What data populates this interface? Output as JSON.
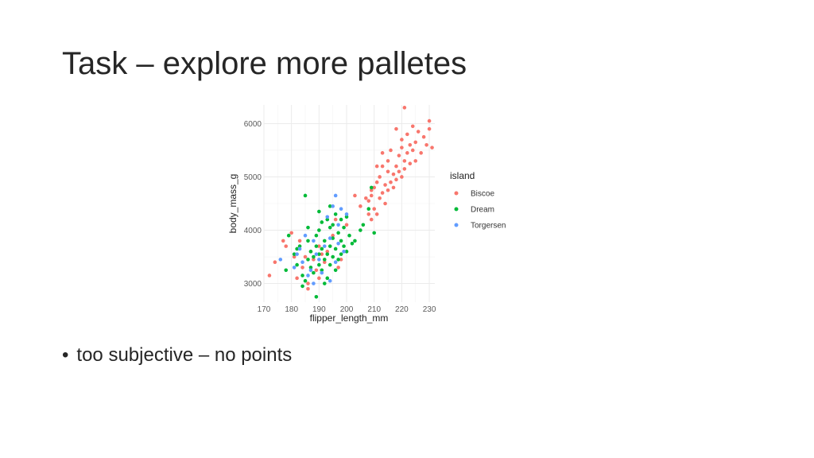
{
  "slide": {
    "title": "Task – explore more palletes",
    "bullet_glyph": "•",
    "bullet": "too subjective – no points"
  },
  "chart_data": {
    "type": "scatter",
    "title": "",
    "xlabel": "flipper_length_mm",
    "ylabel": "body_mass_g",
    "xlim": [
      170,
      232
    ],
    "ylim": [
      2650,
      6350
    ],
    "xticks": [
      170,
      180,
      190,
      200,
      210,
      220,
      230
    ],
    "yticks": [
      3000,
      4000,
      5000,
      6000
    ],
    "grid": true,
    "legend": {
      "title": "island",
      "placement": "right"
    },
    "series": [
      {
        "name": "Biscoe",
        "color": "#F8766D",
        "points": [
          [
            172,
            3150
          ],
          [
            174,
            3400
          ],
          [
            178,
            3700
          ],
          [
            180,
            3950
          ],
          [
            181,
            3500
          ],
          [
            182,
            3100
          ],
          [
            183,
            3800
          ],
          [
            184,
            3300
          ],
          [
            185,
            3500
          ],
          [
            186,
            3000
          ],
          [
            187,
            3600
          ],
          [
            188,
            3450
          ],
          [
            189,
            3250
          ],
          [
            190,
            3700
          ],
          [
            191,
            3550
          ],
          [
            192,
            3400
          ],
          [
            193,
            3600
          ],
          [
            195,
            3900
          ],
          [
            196,
            4200
          ],
          [
            197,
            3300
          ],
          [
            198,
            3450
          ],
          [
            200,
            4100
          ],
          [
            203,
            4650
          ],
          [
            205,
            4450
          ],
          [
            207,
            4600
          ],
          [
            208,
            4300
          ],
          [
            208,
            4550
          ],
          [
            209,
            4200
          ],
          [
            209,
            4750
          ],
          [
            210,
            4800
          ],
          [
            210,
            4400
          ],
          [
            211,
            4300
          ],
          [
            211,
            4900
          ],
          [
            212,
            4600
          ],
          [
            212,
            5000
          ],
          [
            213,
            4700
          ],
          [
            213,
            5200
          ],
          [
            214,
            4500
          ],
          [
            214,
            4850
          ],
          [
            215,
            5100
          ],
          [
            215,
            4750
          ],
          [
            215,
            5300
          ],
          [
            216,
            4900
          ],
          [
            216,
            5500
          ],
          [
            217,
            5050
          ],
          [
            217,
            4800
          ],
          [
            218,
            5200
          ],
          [
            218,
            4950
          ],
          [
            219,
            5400
          ],
          [
            219,
            5100
          ],
          [
            220,
            5000
          ],
          [
            220,
            5550
          ],
          [
            220,
            5700
          ],
          [
            221,
            5300
          ],
          [
            221,
            5150
          ],
          [
            222,
            5450
          ],
          [
            222,
            5800
          ],
          [
            223,
            5600
          ],
          [
            223,
            5250
          ],
          [
            224,
            5500
          ],
          [
            224,
            5950
          ],
          [
            225,
            5650
          ],
          [
            225,
            5300
          ],
          [
            226,
            5850
          ],
          [
            227,
            5450
          ],
          [
            228,
            5750
          ],
          [
            229,
            5600
          ],
          [
            230,
            5900
          ],
          [
            230,
            6050
          ],
          [
            231,
            5550
          ],
          [
            221,
            6300
          ],
          [
            218,
            5900
          ],
          [
            213,
            5450
          ],
          [
            211,
            5200
          ],
          [
            209,
            4650
          ],
          [
            186,
            2900
          ],
          [
            190,
            3100
          ],
          [
            177,
            3800
          ]
        ]
      },
      {
        "name": "Dream",
        "color": "#00BA38",
        "points": [
          [
            178,
            3250
          ],
          [
            179,
            3900
          ],
          [
            181,
            3550
          ],
          [
            182,
            3350
          ],
          [
            183,
            3700
          ],
          [
            184,
            3150
          ],
          [
            185,
            3050
          ],
          [
            185,
            4650
          ],
          [
            186,
            3450
          ],
          [
            186,
            3800
          ],
          [
            187,
            3300
          ],
          [
            187,
            3600
          ],
          [
            188,
            3200
          ],
          [
            188,
            3500
          ],
          [
            189,
            3700
          ],
          [
            189,
            3900
          ],
          [
            190,
            3350
          ],
          [
            190,
            3550
          ],
          [
            190,
            4000
          ],
          [
            191,
            3250
          ],
          [
            191,
            3650
          ],
          [
            191,
            4150
          ],
          [
            192,
            3450
          ],
          [
            192,
            3800
          ],
          [
            193,
            3100
          ],
          [
            193,
            3550
          ],
          [
            193,
            4200
          ],
          [
            194,
            3350
          ],
          [
            194,
            3700
          ],
          [
            194,
            4050
          ],
          [
            195,
            3500
          ],
          [
            195,
            3850
          ],
          [
            196,
            3250
          ],
          [
            196,
            3650
          ],
          [
            196,
            4300
          ],
          [
            197,
            3450
          ],
          [
            197,
            3950
          ],
          [
            198,
            3550
          ],
          [
            198,
            3800
          ],
          [
            199,
            3700
          ],
          [
            199,
            4050
          ],
          [
            200,
            3600
          ],
          [
            201,
            3900
          ],
          [
            202,
            3750
          ],
          [
            205,
            4000
          ],
          [
            206,
            4100
          ],
          [
            208,
            4400
          ],
          [
            209,
            4800
          ],
          [
            210,
            3950
          ],
          [
            184,
            2950
          ],
          [
            189,
            2750
          ],
          [
            192,
            3000
          ],
          [
            195,
            4100
          ],
          [
            198,
            4200
          ],
          [
            200,
            4250
          ],
          [
            203,
            3800
          ],
          [
            182,
            3650
          ],
          [
            186,
            4050
          ],
          [
            190,
            4350
          ],
          [
            194,
            4450
          ]
        ]
      },
      {
        "name": "Torgersen",
        "color": "#619CFF",
        "points": [
          [
            176,
            3450
          ],
          [
            181,
            3300
          ],
          [
            183,
            3650
          ],
          [
            184,
            3400
          ],
          [
            185,
            3900
          ],
          [
            186,
            3150
          ],
          [
            187,
            3250
          ],
          [
            188,
            3000
          ],
          [
            189,
            3550
          ],
          [
            190,
            3450
          ],
          [
            191,
            3200
          ],
          [
            192,
            3700
          ],
          [
            193,
            4250
          ],
          [
            194,
            3850
          ],
          [
            195,
            4450
          ],
          [
            196,
            3400
          ],
          [
            196,
            4650
          ],
          [
            197,
            4100
          ],
          [
            198,
            4400
          ],
          [
            199,
            3600
          ],
          [
            200,
            4300
          ],
          [
            182,
            3550
          ],
          [
            188,
            3800
          ],
          [
            194,
            3050
          ],
          [
            197,
            3750
          ]
        ]
      }
    ]
  }
}
